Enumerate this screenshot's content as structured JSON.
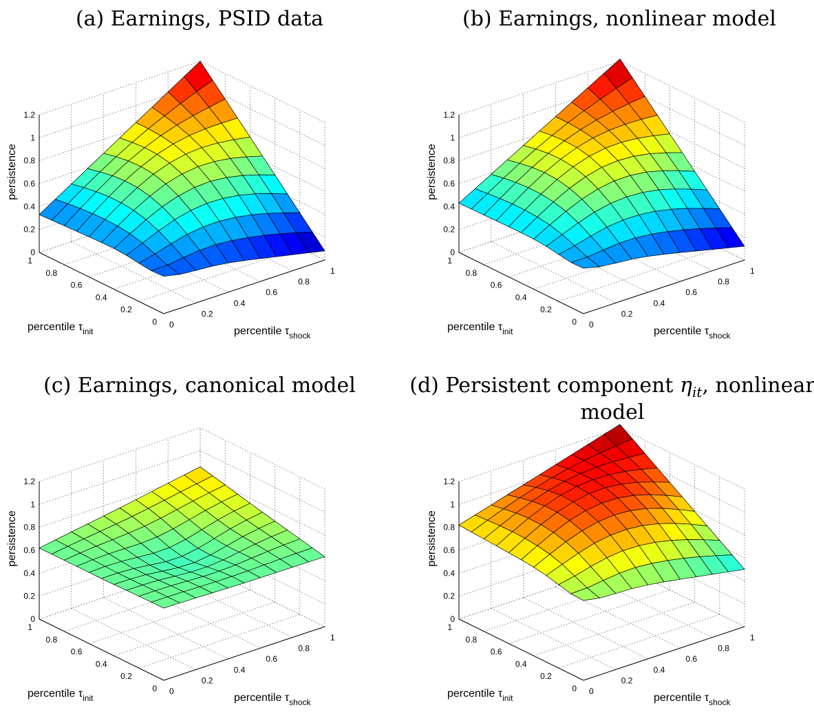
{
  "chart_data": [
    {
      "panel": "a",
      "type": "surface",
      "title_prefix": "(a) Earnings, PSID data",
      "title_math": "",
      "title_suffix": "",
      "xlabel": "percentile τ",
      "xlabel_sub": "shock",
      "ylabel": "percentile τ",
      "ylabel_sub": "init",
      "zlabel": "persistence",
      "xlim": [
        0,
        1
      ],
      "ylim": [
        0,
        1
      ],
      "zlim": [
        0,
        1.2
      ],
      "x_ticks": [
        "0",
        "0.2",
        "0.4",
        "0.6",
        "0.8",
        "1"
      ],
      "y_ticks": [
        "0",
        "0.2",
        "0.4",
        "0.6",
        "0.8",
        "1"
      ],
      "z_ticks": [
        "0",
        "0.2",
        "0.4",
        "0.6",
        "0.8",
        "1",
        "1.2"
      ],
      "grid": true,
      "colormap": "jet",
      "surface": {
        "base": 0.33,
        "peak": 1.2,
        "right": 0.08,
        "far": 0.38,
        "dip": 0.06,
        "cx": 0.95,
        "cy": 0.92
      }
    },
    {
      "panel": "b",
      "type": "surface",
      "title_prefix": "(b) Earnings, nonlinear model",
      "title_math": "",
      "title_suffix": "",
      "xlabel": "percentile τ",
      "xlabel_sub": "shock",
      "ylabel": "percentile τ",
      "ylabel_sub": "init",
      "zlabel": "persistence",
      "xlim": [
        0,
        1
      ],
      "ylim": [
        0,
        1
      ],
      "zlim": [
        0,
        1.2
      ],
      "x_ticks": [
        "0",
        "0.2",
        "0.4",
        "0.6",
        "0.8",
        "1"
      ],
      "y_ticks": [
        "0",
        "0.2",
        "0.4",
        "0.6",
        "0.8",
        "1"
      ],
      "z_ticks": [
        "0",
        "0.2",
        "0.4",
        "0.6",
        "0.8",
        "1",
        "1.2"
      ],
      "grid": true,
      "colormap": "jet",
      "surface": {
        "base": 0.43,
        "peak": 1.22,
        "right": 0.12,
        "far": 0.45,
        "dip": 0.06,
        "cx": 1.0,
        "cy": 1.0
      }
    },
    {
      "panel": "c",
      "type": "surface",
      "title_prefix": "(c) Earnings, canonical model",
      "title_math": "",
      "title_suffix": "",
      "xlabel": "percentile τ",
      "xlabel_sub": "shock",
      "ylabel": "percentile τ",
      "ylabel_sub": "init",
      "zlabel": "persistence",
      "xlim": [
        0,
        1
      ],
      "ylim": [
        0,
        1
      ],
      "zlim": [
        0,
        1.2
      ],
      "x_ticks": [
        "0",
        "0.2",
        "0.4",
        "0.6",
        "0.8",
        "1"
      ],
      "y_ticks": [
        "0",
        "0.2",
        "0.4",
        "0.6",
        "0.8",
        "1"
      ],
      "z_ticks": [
        "0",
        "0.2",
        "0.4",
        "0.6",
        "0.8",
        "1",
        "1.2"
      ],
      "grid": true,
      "colormap": "jet",
      "surface": {
        "base": 0.62,
        "peak": 0.86,
        "right": 0.61,
        "far": 0.63,
        "dip": -0.1,
        "cx": 0.5,
        "cy": 0.5,
        "flat": true
      }
    },
    {
      "panel": "d",
      "type": "surface",
      "title_prefix": "(d) Persistent component ",
      "title_math": "η",
      "title_math_sub": "it",
      "title_suffix": ", nonlinear model",
      "xlabel": "percentile τ",
      "xlabel_sub": "shock",
      "ylabel": "percentile τ",
      "ylabel_sub": "init",
      "zlabel": "persistence",
      "xlim": [
        0,
        1
      ],
      "ylim": [
        0,
        1
      ],
      "zlim": [
        0,
        1.2
      ],
      "x_ticks": [
        "0",
        "0.2",
        "0.4",
        "0.6",
        "0.8",
        "1"
      ],
      "y_ticks": [
        "0",
        "0.2",
        "0.4",
        "0.6",
        "0.8",
        "1"
      ],
      "z_ticks": [
        "0",
        "0.2",
        "0.4",
        "0.6",
        "0.8",
        "1",
        "1.2"
      ],
      "grid": true,
      "colormap": "jet",
      "surface": {
        "base": 0.82,
        "peak": 1.23,
        "right": 0.5,
        "far": 0.75,
        "dip": 0.06,
        "cx": 1.0,
        "cy": 1.0
      }
    }
  ]
}
